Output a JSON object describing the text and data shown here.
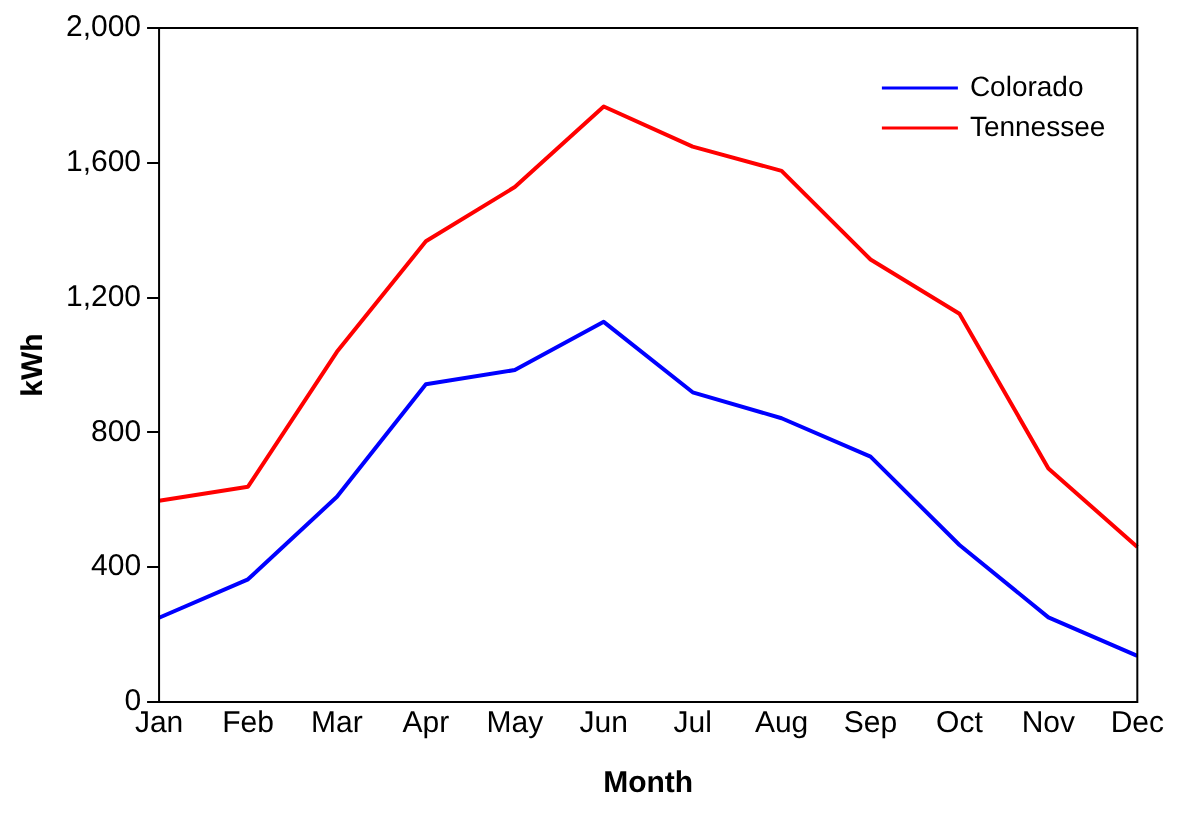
{
  "chart_data": {
    "type": "line",
    "xlabel": "Month",
    "ylabel": "kWh",
    "categories": [
      "Jan",
      "Feb",
      "Mar",
      "Apr",
      "May",
      "Jun",
      "Jul",
      "Aug",
      "Sep",
      "Oct",
      "Nov",
      "Dec"
    ],
    "series": [
      {
        "name": "Colorado",
        "color": "#0000ff",
        "values": [
          250,
          364,
          609,
          943,
          985,
          1128,
          919,
          842,
          728,
          466,
          251,
          137
        ]
      },
      {
        "name": "Tennessee",
        "color": "#ff0000",
        "values": [
          597,
          639,
          1039,
          1367,
          1528,
          1767,
          1648,
          1576,
          1313,
          1152,
          693,
          460
        ]
      }
    ],
    "ylim": [
      0,
      2000
    ],
    "yticks": [
      0,
      400,
      800,
      {
        "value": 1200,
        "label": "1,200"
      },
      {
        "value": 1600,
        "label": "1,600"
      },
      {
        "value": 2000,
        "label": "2,000"
      }
    ],
    "grid": false,
    "legend": "top right",
    "marker": "none",
    "line_style": "solid"
  }
}
